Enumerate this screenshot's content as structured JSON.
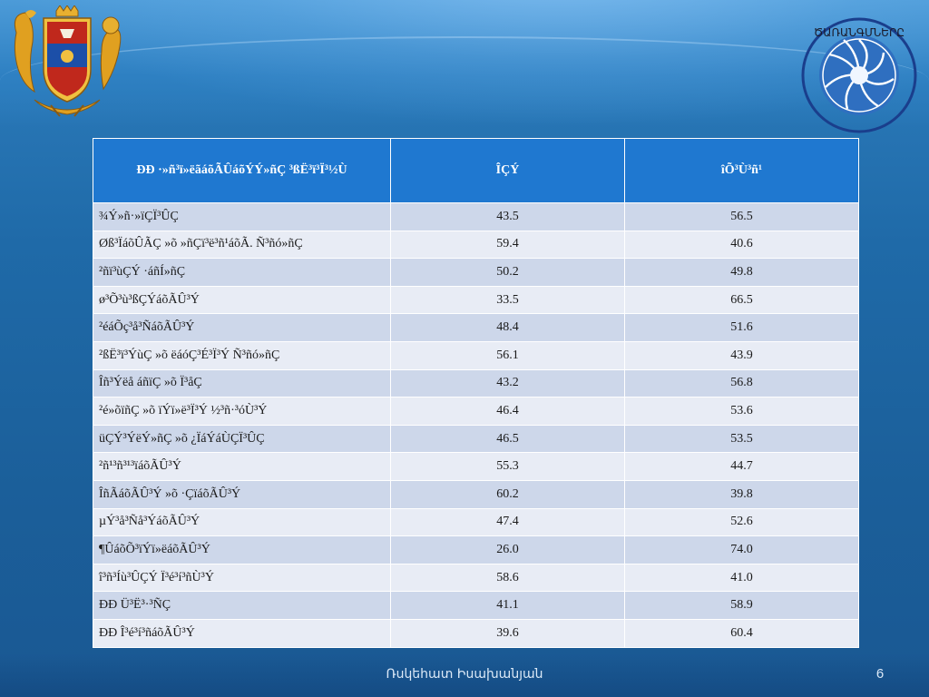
{
  "table": {
    "headers": [
      "ÐÐ ·»ñ³ï»ëãáõÃÛáõÝÝ»ñÇ ³ßË³ï³Ï³½Ù",
      "ÎÇÝ",
      "îÕ³Ù³ñ¹"
    ],
    "rows": [
      [
        "¾Ý»ñ·»ïÇÏ³ÛÇ",
        "43.5",
        "56.5"
      ],
      [
        "Øß³ÏáõÛÃÇ  »õ »ñÇï³ë³ñ¹áõÃ. Ñ³ñó»ñÇ",
        "59.4",
        "40.6"
      ],
      [
        "²ñï³ùÇÝ ·áñÍ»ñÇ",
        "50.2",
        "49.8"
      ],
      [
        "ø³Õ³ù³ßÇÝáõÃÛ³Ý",
        "33.5",
        "66.5"
      ],
      [
        "²éáÕç³å³ÑáõÃÛ³Ý",
        "48.4",
        "51.6"
      ],
      [
        "²ßË³ï³ÝùÇ »õ ëáóÇ³É³Ï³Ý  Ñ³ñó»ñÇ",
        "56.1",
        "43.9"
      ],
      [
        "Îñ³Ýëå áñïÇ »õ Ï³åÇ",
        "43.2",
        "56.8"
      ],
      [
        "²é»õïñÇ »õ ïÝï»ë³Ï³Ý ½³ñ·³óÙ³Ý",
        "46.4",
        "53.6"
      ],
      [
        "üÇÝ³ÝëÝ»ñÇ »õ ¿ÏáÝáÙÇÏ³ÛÇ",
        "46.5",
        "53.5"
      ],
      [
        "²ñ¹³ñ³¹³ïáõÃÛ³Ý",
        "55.3",
        "44.7"
      ],
      [
        "ÎñÃáõÃÛ³Ý »õ ·ÇïáõÃÛ³Ý",
        "60.2",
        "39.8"
      ],
      [
        "µÝ³å³Ñå³ÝáõÃÛ³Ý",
        "47.4",
        "52.6"
      ],
      [
        "¶ÛáõÕ³ïÝï»ëáõÃÛ³Ý",
        "26.0",
        "74.0"
      ],
      [
        "î³ñ³Íù³ÛÇÝ Ï³é³í³ñÙ³Ý",
        "58.6",
        "41.0"
      ],
      [
        "ÐÐ Ü³Ë³·³ÑÇ",
        "41.1",
        "58.9"
      ],
      [
        "ÐÐ Î³é³í³ñáõÃÛ³Ý",
        "39.6",
        "60.4"
      ]
    ]
  },
  "footer": {
    "author": "Ռսկեհատ Իսախանյան",
    "page_number": "6"
  },
  "logo": {
    "ring_text": "ԾԱՌԱՆԳՄՆԵՐԸ"
  },
  "colors": {
    "header_bg": "#1f78d0",
    "row_odd": "#cdd7ea",
    "row_even": "#e8ecf5",
    "background": "#1f6aa8"
  }
}
